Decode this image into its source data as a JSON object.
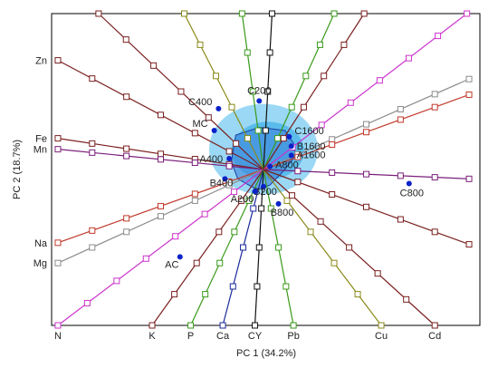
{
  "chart_data": {
    "type": "scatter",
    "subtype": "biplot",
    "xlabel": "PC 1 (34.2%)",
    "ylabel": "PC 2 (18.7%)",
    "grid": false,
    "legend": "none",
    "xlim": [
      -1,
      1
    ],
    "ylim": [
      -1,
      1
    ],
    "origin": [
      0,
      0
    ],
    "score_region_color": "#9ad8f5",
    "score_region_core_color": "#5bbcec",
    "hull_fill": "#3a7fd8",
    "hull_stroke": "#1a3fa0",
    "point_color": "#0a22c8",
    "points": [
      {
        "label": "C200",
        "x": -0.02,
        "y": 0.44
      },
      {
        "label": "C400",
        "x": -0.21,
        "y": 0.39
      },
      {
        "label": "MC",
        "x": -0.23,
        "y": 0.25
      },
      {
        "label": "C1600",
        "x": 0.12,
        "y": 0.21
      },
      {
        "label": "B1600",
        "x": 0.13,
        "y": 0.15
      },
      {
        "label": "A1600",
        "x": 0.13,
        "y": 0.09
      },
      {
        "label": "A400",
        "x": -0.16,
        "y": 0.07
      },
      {
        "label": "A800",
        "x": 0.03,
        "y": 0.02
      },
      {
        "label": "B400",
        "x": -0.18,
        "y": -0.06
      },
      {
        "label": "B200",
        "x": 0.0,
        "y": -0.11
      },
      {
        "label": "A200",
        "x": -0.04,
        "y": -0.14
      },
      {
        "label": "B800",
        "x": 0.07,
        "y": -0.22
      },
      {
        "label": "C800",
        "x": 0.68,
        "y": -0.09
      },
      {
        "label": "AC",
        "x": -0.39,
        "y": -0.56
      }
    ],
    "loadings": [
      {
        "label": "Zn",
        "color": "#7a1f1f",
        "end": [
          -0.96,
          0.7
        ]
      },
      {
        "label": "Fe",
        "color": "#7a1f1f",
        "end": [
          -0.96,
          0.2
        ]
      },
      {
        "label": "Mn",
        "color": "#7a1f7a",
        "end": [
          -0.96,
          0.13
        ]
      },
      {
        "label": "Na",
        "color": "#c0392b",
        "end": [
          -0.96,
          -0.47
        ]
      },
      {
        "label": "Mg",
        "color": "#8c8c8c",
        "end": [
          -0.96,
          -0.6
        ]
      },
      {
        "label": "N",
        "color": "#cc33cc",
        "end": [
          -0.96,
          -1.0
        ]
      },
      {
        "label": "K",
        "color": "#7a1f1f",
        "end": [
          -0.52,
          -1.0
        ]
      },
      {
        "label": "P",
        "color": "#3a9a1a",
        "end": [
          -0.34,
          -1.0
        ]
      },
      {
        "label": "Ca",
        "color": "#1a2a9a",
        "end": [
          -0.19,
          -1.0
        ]
      },
      {
        "label": "CY",
        "color": "#111111",
        "end": [
          -0.04,
          -1.0
        ]
      },
      {
        "label": "Pb",
        "color": "#3a9a1a",
        "end": [
          0.14,
          -1.0
        ]
      },
      {
        "label": "Cu",
        "color": "#8a8a1a",
        "end": [
          0.55,
          -1.0
        ]
      },
      {
        "label": "Cd",
        "color": "#7a1f1f",
        "end": [
          0.8,
          -1.0
        ]
      }
    ],
    "extra_lines": [
      {
        "color": "#7a1f1f",
        "end": [
          -0.77,
          1.0
        ]
      },
      {
        "color": "#8a8a1a",
        "end": [
          -0.37,
          1.0
        ]
      },
      {
        "color": "#3a9a1a",
        "end": [
          -0.1,
          1.0
        ]
      },
      {
        "color": "#111111",
        "end": [
          0.04,
          1.0
        ]
      },
      {
        "color": "#3a9a1a",
        "end": [
          0.33,
          1.0
        ]
      },
      {
        "color": "#7a1f1f",
        "end": [
          0.47,
          1.0
        ]
      },
      {
        "color": "#cc33cc",
        "end": [
          0.95,
          1.0
        ]
      },
      {
        "color": "#8c8c8c",
        "end": [
          0.96,
          0.58
        ]
      },
      {
        "color": "#c0392b",
        "end": [
          0.96,
          0.48
        ]
      },
      {
        "color": "#7a1f1f",
        "end": [
          0.96,
          -0.48
        ]
      },
      {
        "color": "#7a1f7a",
        "end": [
          0.96,
          -0.06
        ]
      }
    ]
  }
}
